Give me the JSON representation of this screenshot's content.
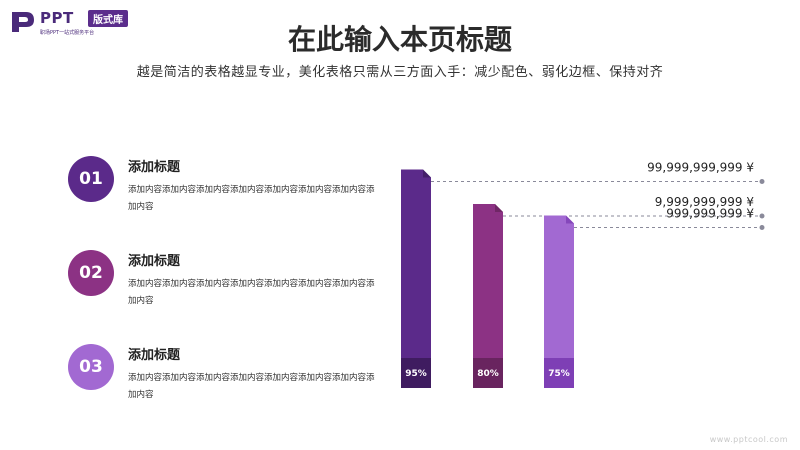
{
  "logo": {
    "brand": "PPT",
    "badge": "版式库",
    "tagline": "职场PPT一站式服务平台",
    "colors": {
      "primary": "#4a2a7a",
      "badge_bg": "#5b2d8c"
    }
  },
  "header": {
    "title": "在此输入本页标题",
    "subtitle": "越是简洁的表格越显专业，美化表格只需从三方面入手：减少配色、弱化边框、保持对齐"
  },
  "items": [
    {
      "number": "01",
      "title": "添加标题",
      "desc": "添加内容添加内容添加内容添加内容添加内容添加内容添加内容添加内容",
      "color": "#5b2a8a"
    },
    {
      "number": "02",
      "title": "添加标题",
      "desc": "添加内容添加内容添加内容添加内容添加内容添加内容添加内容添加内容",
      "color": "#8c3284"
    },
    {
      "number": "03",
      "title": "添加标题",
      "desc": "添加内容添加内容添加内容添加内容添加内容添加内容添加内容添加内容",
      "color": "#a269d2"
    }
  ],
  "chart_data": {
    "type": "bar",
    "categories": [
      "",
      "",
      ""
    ],
    "values": [
      95,
      80,
      75
    ],
    "value_labels": [
      "95%",
      "80%",
      "75%"
    ],
    "amount_labels": [
      "99,999,999,999 ¥",
      "9,999,999,999 ¥",
      "999,999,999 ¥"
    ],
    "colors": [
      "#5b2a8a",
      "#8c3284",
      "#a269d2"
    ],
    "base_colors": [
      "#3f1c60",
      "#69245f",
      "#7e3fb5"
    ],
    "grid": false
  },
  "watermark": "www.pptcool.com"
}
